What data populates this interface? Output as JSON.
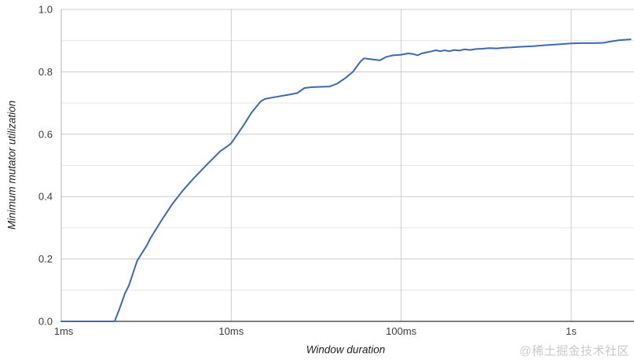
{
  "chart_data": {
    "type": "line",
    "title": "",
    "xlabel": "Window duration",
    "ylabel": "Minimum mutator utilization",
    "x_scale": "log",
    "x_unit": "ms",
    "xlim_ms": [
      1,
      2344
    ],
    "ylim": [
      0,
      1
    ],
    "grid": true,
    "legend": "none",
    "x_ticks": [
      {
        "t_ms": 1,
        "label": "1ms"
      },
      {
        "t_ms": 10,
        "label": "10ms"
      },
      {
        "t_ms": 100,
        "label": "100ms"
      },
      {
        "t_ms": 1000,
        "label": "1s"
      }
    ],
    "y_ticks": [
      {
        "v": 0.0,
        "label": "0.0"
      },
      {
        "v": 0.2,
        "label": "0.2"
      },
      {
        "v": 0.4,
        "label": "0.4"
      },
      {
        "v": 0.6,
        "label": "0.6"
      },
      {
        "v": 0.8,
        "label": "0.8"
      },
      {
        "v": 1.0,
        "label": "1.0"
      }
    ],
    "y_minor_grid_step": 0.1,
    "series": [
      {
        "name": "Minimum mutator utilization",
        "color": "#3b69b4",
        "points_t_ms_v": [
          [
            1,
            0.0
          ],
          [
            1.5,
            0.0
          ],
          [
            2.06,
            0.0
          ],
          [
            2.2,
            0.04
          ],
          [
            2.37,
            0.09
          ],
          [
            2.5,
            0.115
          ],
          [
            2.8,
            0.195
          ],
          [
            3.2,
            0.245
          ],
          [
            3.35,
            0.267
          ],
          [
            3.9,
            0.325
          ],
          [
            4.5,
            0.376
          ],
          [
            5.2,
            0.42
          ],
          [
            6.0,
            0.458
          ],
          [
            7.2,
            0.503
          ],
          [
            8.6,
            0.545
          ],
          [
            9.7,
            0.565
          ],
          [
            10.0,
            0.571
          ],
          [
            11.8,
            0.628
          ],
          [
            13.2,
            0.67
          ],
          [
            14.9,
            0.705
          ],
          [
            15.8,
            0.713
          ],
          [
            18.5,
            0.72
          ],
          [
            22.0,
            0.727
          ],
          [
            24.5,
            0.732
          ],
          [
            27.0,
            0.748
          ],
          [
            30.0,
            0.751
          ],
          [
            38.0,
            0.753
          ],
          [
            42.0,
            0.762
          ],
          [
            47.0,
            0.78
          ],
          [
            52.0,
            0.8
          ],
          [
            58.0,
            0.835
          ],
          [
            60.5,
            0.843
          ],
          [
            67.0,
            0.84
          ],
          [
            75.0,
            0.837
          ],
          [
            82.0,
            0.848
          ],
          [
            90.0,
            0.853
          ],
          [
            100.0,
            0.855
          ],
          [
            110.0,
            0.859
          ],
          [
            118.0,
            0.857
          ],
          [
            125.0,
            0.853
          ],
          [
            132.0,
            0.859
          ],
          [
            143.0,
            0.863
          ],
          [
            152.0,
            0.866
          ],
          [
            160.0,
            0.869
          ],
          [
            170.0,
            0.866
          ],
          [
            180.0,
            0.869
          ],
          [
            192.0,
            0.866
          ],
          [
            205.0,
            0.87
          ],
          [
            220.0,
            0.868
          ],
          [
            235.0,
            0.872
          ],
          [
            255.0,
            0.87
          ],
          [
            275.0,
            0.873
          ],
          [
            300.0,
            0.874
          ],
          [
            330.0,
            0.876
          ],
          [
            365.0,
            0.875
          ],
          [
            400.0,
            0.877
          ],
          [
            440.0,
            0.878
          ],
          [
            490.0,
            0.88
          ],
          [
            540.0,
            0.881
          ],
          [
            600.0,
            0.882
          ],
          [
            680.0,
            0.885
          ],
          [
            780.0,
            0.887
          ],
          [
            880.0,
            0.889
          ],
          [
            1000.0,
            0.891
          ],
          [
            1150.0,
            0.892
          ],
          [
            1350.0,
            0.892
          ],
          [
            1550.0,
            0.893
          ],
          [
            1700.0,
            0.897
          ],
          [
            1900.0,
            0.901
          ],
          [
            2100.0,
            0.903
          ],
          [
            2240.0,
            0.904
          ]
        ]
      }
    ]
  },
  "colors": {
    "background": "#ffffff",
    "grid_major": "#cccccc",
    "grid_minor": "#e5e5e5",
    "axis_left": "#b5b5b5",
    "axis_bottom": "#333333",
    "tick_text": "#3d3d3d",
    "axis_title_text": "#1f1f1f",
    "line": "#3b69b4",
    "watermark": "#c9c9c9"
  },
  "watermark": {
    "text": "@稀土掘金技术社区"
  }
}
